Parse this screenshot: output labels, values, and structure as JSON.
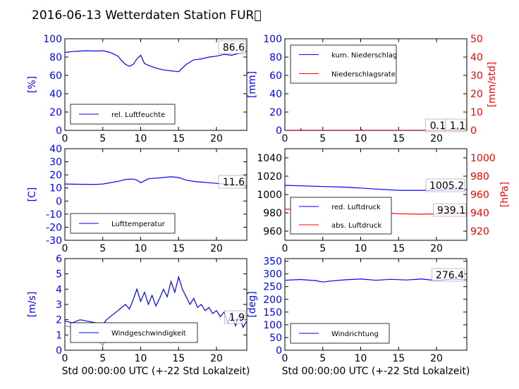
{
  "title": "2016-06-13 Wetterdaten Station FUR\u0000",
  "xlabel": "Std 00:00:00 UTC (+-22 Std Lokalzeit)",
  "colors": {
    "primary": "#0000ff",
    "secondary": "#ff0000",
    "light": "#7f7fff"
  },
  "chart_data": [
    {
      "type": "line",
      "ylabel": "[%]",
      "xlim": [
        0,
        24
      ],
      "ylim": [
        0,
        100
      ],
      "xticks": [
        0,
        5,
        10,
        15,
        20
      ],
      "yticks": [
        0,
        20,
        40,
        60,
        80,
        100
      ],
      "current_value": "86.6",
      "legend": {
        "position": "lower-left"
      },
      "series": [
        {
          "name": "rel. Luftfeuchte",
          "color": "#0000ff",
          "x": [
            0,
            1,
            2,
            3,
            4,
            5,
            6,
            7,
            7.5,
            8,
            8.5,
            9,
            9.5,
            10,
            10.5,
            11,
            12,
            13,
            14,
            15,
            16,
            17,
            18,
            19,
            20,
            21,
            22,
            23,
            24
          ],
          "y": [
            85,
            86,
            86.5,
            87,
            86.5,
            87,
            85,
            81,
            76,
            72,
            70,
            72,
            78,
            82,
            73,
            71,
            68,
            66,
            65,
            64,
            72,
            77,
            78,
            80,
            81,
            83,
            82,
            84,
            86.6
          ]
        }
      ]
    },
    {
      "type": "line",
      "ylabel": "[mm]",
      "y2label": "[mm/std]",
      "xlim": [
        0,
        24
      ],
      "ylim": [
        0,
        100
      ],
      "y2lim": [
        0,
        50
      ],
      "xticks": [
        0,
        5,
        10,
        15,
        20
      ],
      "yticks": [
        0,
        20,
        40,
        60,
        80,
        100
      ],
      "y2ticks": [
        0,
        10,
        20,
        30,
        40,
        50
      ],
      "current_value": "0.1",
      "current_value_2": "1.1",
      "legend": {
        "position": "upper-left"
      },
      "series": [
        {
          "name": "kum. Niederschlag",
          "color": "#0000ff",
          "axis": "left",
          "x": [
            0,
            20,
            21,
            22,
            23,
            24
          ],
          "y": [
            0,
            0,
            0.1,
            0.4,
            0.8,
            1.1
          ]
        },
        {
          "name": "Niederschlagsrate",
          "color": "#ff0000",
          "axis": "right",
          "x": [
            0,
            2,
            2.1,
            2.2,
            10,
            10.1,
            10.2,
            20.5,
            21,
            21.5,
            24
          ],
          "y": [
            0,
            0,
            0.8,
            0,
            0,
            0.5,
            0,
            0,
            0.6,
            0,
            0.1
          ]
        }
      ]
    },
    {
      "type": "line",
      "ylabel": "[C]",
      "xlim": [
        0,
        24
      ],
      "ylim": [
        -30,
        40
      ],
      "xticks": [
        0,
        5,
        10,
        15,
        20
      ],
      "yticks": [
        -30,
        -20,
        -10,
        0,
        10,
        20,
        30,
        40
      ],
      "current_value": "11.6",
      "legend": {
        "position": "lower-left"
      },
      "series": [
        {
          "name": "Lufttemperatur",
          "color": "#0000ff",
          "x": [
            0,
            2,
            4,
            5,
            6,
            7,
            8,
            9,
            9.5,
            10,
            11,
            12,
            13,
            14,
            15,
            16,
            17,
            18,
            19,
            20,
            21,
            22,
            23,
            24
          ],
          "y": [
            13,
            12.8,
            12.7,
            13,
            14,
            15,
            16.5,
            16.8,
            16,
            14,
            17,
            17.5,
            18,
            18.5,
            18,
            16,
            15,
            14.5,
            14,
            13.5,
            13,
            12.5,
            12,
            11.6
          ]
        }
      ]
    },
    {
      "type": "line",
      "ylabel": "[hPa]",
      "xlim": [
        0,
        24
      ],
      "ylim": [
        950,
        1050
      ],
      "y2lim": [
        910,
        1010
      ],
      "xticks": [
        0,
        5,
        10,
        15,
        20
      ],
      "yticks": [
        960,
        980,
        1000,
        1020,
        1040
      ],
      "y2ticks": [
        920,
        940,
        960,
        980,
        1000
      ],
      "current_value": "1005.2",
      "current_value_2": "939.1",
      "legend": {
        "position": "lower-left"
      },
      "series": [
        {
          "name": "red. Luftdruck",
          "color": "#0000ff",
          "axis": "left",
          "x": [
            0,
            4,
            8,
            12,
            15,
            18,
            21,
            24
          ],
          "y": [
            1010,
            1009,
            1008,
            1006,
            1004.5,
            1004.5,
            1005,
            1005.2
          ]
        },
        {
          "name": "abs. Luftdruck",
          "color": "#ff0000",
          "axis": "right",
          "x": [
            0,
            4,
            8,
            12,
            15,
            18,
            21,
            24
          ],
          "y": [
            944,
            943,
            942,
            940.5,
            939,
            938.5,
            939,
            939.1
          ]
        }
      ]
    },
    {
      "type": "line",
      "ylabel": "[m/s]",
      "xlim": [
        0,
        24
      ],
      "ylim": [
        0,
        6
      ],
      "xticks": [
        0,
        5,
        10,
        15,
        20
      ],
      "yticks": [
        0,
        1,
        2,
        3,
        4,
        5,
        6
      ],
      "current_value": "1.9",
      "legend": {
        "position": "lower-left"
      },
      "series": [
        {
          "name": "Windgeschwindigkeit",
          "color": "#0000ff",
          "x": [
            0,
            1,
            2,
            3,
            4,
            5,
            5.5,
            6,
            7,
            8,
            8.5,
            9,
            9.5,
            10,
            10.5,
            11,
            11.5,
            12,
            12.5,
            13,
            13.5,
            14,
            14.5,
            15,
            15.5,
            16,
            16.5,
            17,
            17.5,
            18,
            18.5,
            19,
            19.5,
            20,
            20.5,
            21,
            21.5,
            22,
            22.5,
            23,
            23.5,
            24
          ],
          "y": [
            1.9,
            1.8,
            2.0,
            1.9,
            1.8,
            1.7,
            2.0,
            2.2,
            2.6,
            3.0,
            2.7,
            3.3,
            4.0,
            3.2,
            3.8,
            3.0,
            3.6,
            2.9,
            3.4,
            4.0,
            3.5,
            4.5,
            3.8,
            4.8,
            4.0,
            3.5,
            3.0,
            3.4,
            2.8,
            3.0,
            2.6,
            2.8,
            2.4,
            2.6,
            2.2,
            2.5,
            1.8,
            2.4,
            1.6,
            2.3,
            1.5,
            1.9
          ]
        },
        {
          "name": "",
          "color": "#7f7fff",
          "x": [
            0,
            1,
            2,
            3,
            3.5,
            4,
            4.5,
            5,
            5.5,
            6
          ],
          "y": [
            1.6,
            1.5,
            1.7,
            1.4,
            1.3,
            1.0,
            0.6,
            0.3,
            0.9,
            1.8
          ]
        }
      ]
    },
    {
      "type": "line",
      "ylabel": "[deg]",
      "xlim": [
        0,
        24
      ],
      "ylim": [
        0,
        360
      ],
      "xticks": [
        0,
        5,
        10,
        15,
        20
      ],
      "yticks": [
        0,
        50,
        100,
        150,
        200,
        250,
        300,
        350
      ],
      "current_value": "276.4",
      "legend": {
        "position": "lower-left"
      },
      "series": [
        {
          "name": "Windrichtung",
          "color": "#0000ff",
          "x": [
            0,
            2,
            4,
            5,
            6,
            8,
            10,
            12,
            14,
            16,
            18,
            20,
            22,
            24
          ],
          "y": [
            275,
            278,
            274,
            268,
            272,
            277,
            280,
            275,
            279,
            276,
            280,
            274,
            280,
            276.4
          ]
        }
      ]
    }
  ]
}
